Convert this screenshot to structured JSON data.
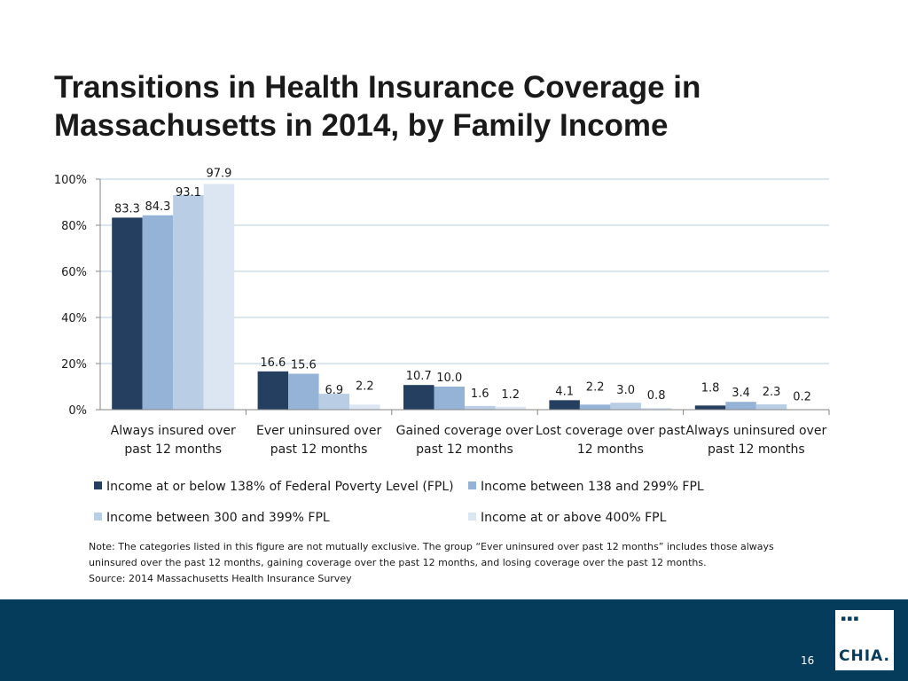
{
  "title": {
    "line1": "Transitions in Health Insurance Coverage in",
    "line2": "Massachusetts in 2014, by Family Income"
  },
  "chart_data": {
    "type": "bar",
    "title": "Transitions in Health Insurance Coverage in Massachusetts in 2014, by Family Income",
    "categories": [
      [
        "Always insured over",
        "past 12 months"
      ],
      [
        "Ever uninsured over",
        "past 12 months"
      ],
      [
        "Gained coverage over",
        "past 12 months"
      ],
      [
        "Lost coverage over past",
        "12 months"
      ],
      [
        "Always uninsured over",
        "past 12 months"
      ]
    ],
    "series": [
      {
        "name": "Income at or below 138% of Federal Poverty Level (FPL)",
        "color": "#243F60",
        "values": [
          83.3,
          16.6,
          10.7,
          4.1,
          1.8
        ]
      },
      {
        "name": "Income between 138 and 299% FPL",
        "color": "#95B3D7",
        "values": [
          84.3,
          15.6,
          10.0,
          2.2,
          3.4
        ]
      },
      {
        "name": "Income between 300 and 399% FPL",
        "color": "#B9CDE5",
        "values": [
          93.1,
          6.9,
          1.6,
          3.0,
          2.3
        ]
      },
      {
        "name": "Income at or above 400% FPL",
        "color": "#DCE6F2",
        "values": [
          97.9,
          2.2,
          1.2,
          0.8,
          0.2
        ]
      }
    ],
    "yticks": [
      "0%",
      "20%",
      "40%",
      "60%",
      "80%",
      "100%"
    ],
    "ylim": [
      0,
      100
    ],
    "xlabel": "",
    "ylabel": "",
    "legend_position": "bottom",
    "grid": true
  },
  "note": {
    "line1": "Note: The categories listed in this figure are not mutually exclusive. The group “Ever uninsured over past 12 months” includes those always",
    "line2": "uninsured over the past 12 months, gaining coverage over the past 12 months, and losing coverage over the past 12 months.",
    "source": "Source:  2014 Massachusetts Health Insurance Survey"
  },
  "footer": {
    "page_number": "16",
    "logo_text": "CHIA.",
    "logo_dots": "▪▪▪",
    "background_color": "#053B5B"
  }
}
